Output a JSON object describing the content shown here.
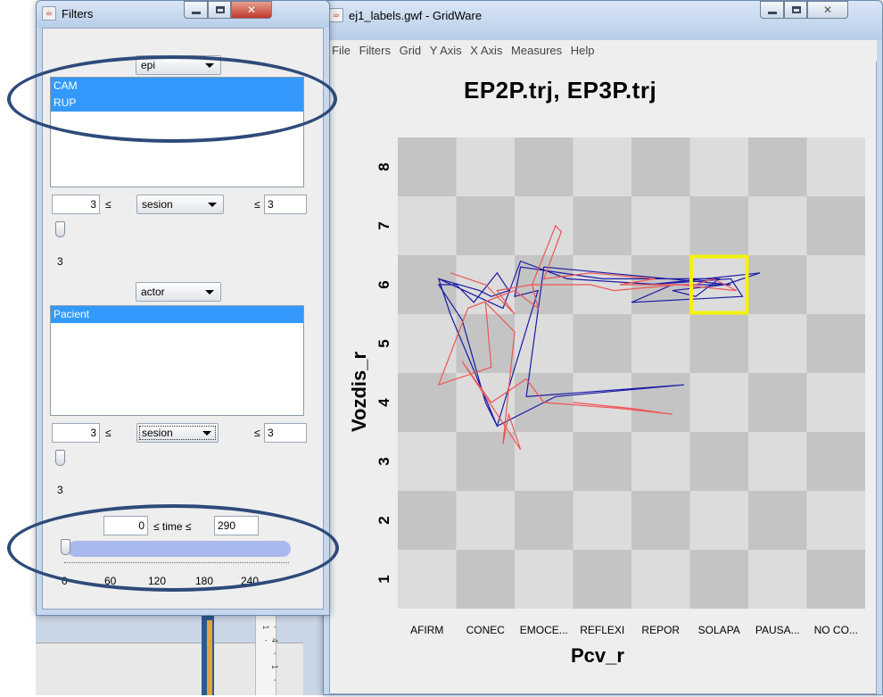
{
  "filters_window": {
    "title": "Filters",
    "epi_combo": "epi",
    "epi_list": [
      "CAM",
      "RUP"
    ],
    "sesion_filter_1": {
      "min": "3",
      "leq_left": "≤",
      "combo": "sesion",
      "leq_right": "≤",
      "max": "3",
      "slider_label": "3"
    },
    "actor_combo": "actor",
    "actor_list": [
      "Pacient"
    ],
    "sesion_filter_2": {
      "min": "3",
      "leq_left": "≤",
      "combo": "sesion",
      "leq_right": "≤",
      "max": "3",
      "slider_label": "3"
    },
    "time_filter": {
      "min": "0",
      "label": "≤ time ≤",
      "max": "290",
      "tick_labels": [
        "0",
        "60",
        "120",
        "180",
        "240"
      ]
    }
  },
  "gridware_window": {
    "title": "ej1_labels.gwf - GridWare",
    "menu": [
      "File",
      "Filters",
      "Grid",
      "Y Axis",
      "X Axis",
      "Measures",
      "Help"
    ]
  },
  "chart_data": {
    "type": "line",
    "title": "EP2P.trj, EP3P.trj",
    "xlabel": "Pcv_r",
    "ylabel": "Vozdis_r",
    "categories": [
      "AFIRM",
      "CONEC",
      "EMOCE...",
      "REFLEXI",
      "REPOR",
      "SOLAPA",
      "PAUSA...",
      "NO CO..."
    ],
    "y_ticks": [
      1,
      2,
      3,
      4,
      5,
      6,
      7,
      8
    ],
    "ylim": [
      0.5,
      8.5
    ],
    "highlighted_cell": {
      "x": 6,
      "y": 6
    },
    "series": [
      {
        "color": "#1a1aa6",
        "points": [
          [
            1.2,
            6.1
          ],
          [
            1.9,
            5.9
          ],
          [
            2.1,
            5.8
          ],
          [
            2.4,
            5.9
          ],
          [
            2.2,
            6.2
          ],
          [
            1.8,
            5.7
          ],
          [
            1.5,
            6.0
          ],
          [
            1.2,
            6.0
          ],
          [
            1.6,
            5.4
          ],
          [
            2.0,
            4.0
          ],
          [
            2.2,
            3.6
          ],
          [
            2.9,
            5.9
          ],
          [
            2.5,
            5.8
          ],
          [
            2.6,
            6.3
          ],
          [
            4.0,
            6.1
          ],
          [
            6.0,
            6.1
          ],
          [
            5.6,
            5.8
          ],
          [
            5.2,
            5.9
          ],
          [
            6.1,
            6.0
          ],
          [
            6.7,
            6.2
          ],
          [
            4.8,
            6.0
          ],
          [
            6.2,
            6.1
          ],
          [
            6.4,
            5.8
          ],
          [
            4.5,
            5.7
          ],
          [
            5.2,
            6.0
          ],
          [
            6.2,
            6.0
          ],
          [
            3.0,
            6.3
          ],
          [
            2.7,
            4.1
          ],
          [
            5.4,
            4.3
          ],
          [
            3.2,
            4.1
          ],
          [
            2.2,
            3.6
          ],
          [
            1.4,
            5.5
          ],
          [
            1.2,
            6.1
          ],
          [
            2.3,
            5.6
          ],
          [
            2.6,
            6.4
          ],
          [
            3.4,
            6.1
          ],
          [
            5.0,
            6.0
          ]
        ]
      },
      {
        "color": "#ee5555",
        "points": [
          [
            1.4,
            6.2
          ],
          [
            2.0,
            6.0
          ],
          [
            2.5,
            5.5
          ],
          [
            2.2,
            5.9
          ],
          [
            2.8,
            6.0
          ],
          [
            3.2,
            7.0
          ],
          [
            3.3,
            6.9
          ],
          [
            3.0,
            6.1
          ],
          [
            3.8,
            6.2
          ],
          [
            4.9,
            6.1
          ],
          [
            4.3,
            6.0
          ],
          [
            5.6,
            6.0
          ],
          [
            5.9,
            6.1
          ],
          [
            6.3,
            5.9
          ],
          [
            5.3,
            6.0
          ],
          [
            4.2,
            5.9
          ],
          [
            3.8,
            6.0
          ],
          [
            2.8,
            6.0
          ],
          [
            2.9,
            5.6
          ],
          [
            2.5,
            5.9
          ],
          [
            1.7,
            5.6
          ],
          [
            1.2,
            4.3
          ],
          [
            2.1,
            4.6
          ],
          [
            2.0,
            5.7
          ],
          [
            2.5,
            5.2
          ],
          [
            2.3,
            3.3
          ],
          [
            2.4,
            3.8
          ],
          [
            2.6,
            3.2
          ],
          [
            2.2,
            3.8
          ],
          [
            1.6,
            4.7
          ],
          [
            2.1,
            4.0
          ],
          [
            2.7,
            4.4
          ],
          [
            3.0,
            4.0
          ],
          [
            4.3,
            3.9
          ],
          [
            5.2,
            3.8
          ],
          [
            4.5,
            3.9
          ],
          [
            3.5,
            4.0
          ]
        ]
      }
    ]
  }
}
